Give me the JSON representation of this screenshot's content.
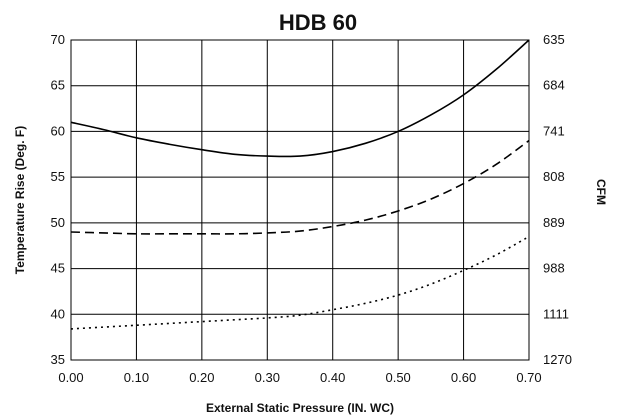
{
  "chart_data": {
    "type": "line",
    "title": "HDB 60",
    "xlabel": "External Static Pressure (IN. WC)",
    "ylabel": "Temperature Rise (Deg. F)",
    "y2label": "CFM",
    "xlim": [
      0,
      0.7
    ],
    "ylim": [
      35,
      70
    ],
    "x_ticks": [
      "0.00",
      "0.10",
      "0.20",
      "0.30",
      "0.40",
      "0.50",
      "0.60",
      "0.70"
    ],
    "y_ticks": [
      "35",
      "40",
      "45",
      "50",
      "55",
      "60",
      "65",
      "70"
    ],
    "y2_ticks": [
      "1270",
      "1111",
      "988",
      "889",
      "808",
      "741",
      "684",
      "635"
    ],
    "grid": true,
    "series": [
      {
        "style": "solid",
        "x": [
          0.0,
          0.05,
          0.1,
          0.15,
          0.2,
          0.25,
          0.3,
          0.35,
          0.4,
          0.45,
          0.5,
          0.55,
          0.6,
          0.65,
          0.7
        ],
        "y": [
          61.0,
          60.2,
          59.3,
          58.6,
          58.0,
          57.5,
          57.3,
          57.3,
          57.8,
          58.7,
          60.0,
          61.8,
          64.0,
          66.8,
          70.0
        ]
      },
      {
        "style": "dashed",
        "x": [
          0.0,
          0.05,
          0.1,
          0.15,
          0.2,
          0.25,
          0.3,
          0.35,
          0.4,
          0.45,
          0.5,
          0.55,
          0.6,
          0.65,
          0.7
        ],
        "y": [
          49.0,
          48.9,
          48.8,
          48.8,
          48.8,
          48.8,
          48.9,
          49.1,
          49.6,
          50.3,
          51.3,
          52.6,
          54.3,
          56.4,
          59.0
        ]
      },
      {
        "style": "dotted",
        "x": [
          0.0,
          0.05,
          0.1,
          0.15,
          0.2,
          0.25,
          0.3,
          0.35,
          0.4,
          0.45,
          0.5,
          0.55,
          0.6,
          0.65,
          0.7
        ],
        "y": [
          38.4,
          38.6,
          38.8,
          39.0,
          39.2,
          39.4,
          39.6,
          39.9,
          40.5,
          41.2,
          42.1,
          43.3,
          44.8,
          46.5,
          48.5
        ]
      }
    ]
  }
}
